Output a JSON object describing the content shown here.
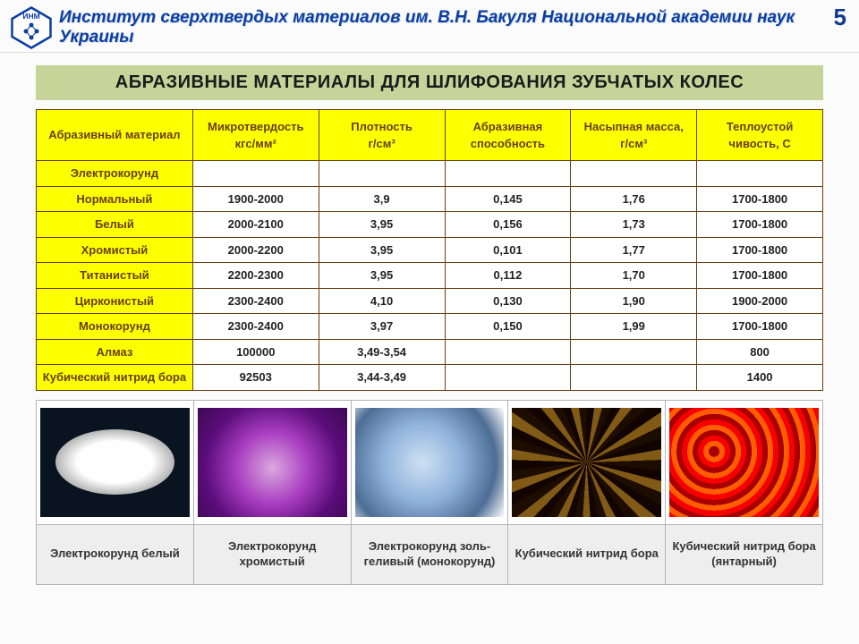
{
  "page_number": "5",
  "institute_title": "Институт сверхтвердых материалов им. В.Н. Бакуля Национальной академии наук Украины",
  "logo_text": "ИНМ",
  "section_title": "АБРАЗИВНЫЕ МАТЕРИАЛЫ ДЛЯ ШЛИФОВАНИЯ ЗУБЧАТЫХ КОЛЕС",
  "table": {
    "columns": [
      "Абразивный материал",
      "Микротвердость кгс/мм²",
      "Плотность г/см³",
      "Абразивная способность",
      "Насыпная масса, г/см³",
      "Теплоустой чивость, С"
    ],
    "col_widths_pct": [
      20,
      16,
      16,
      16,
      16,
      16
    ],
    "header_bg": "#fcff00",
    "header_fg": "#6a3e10",
    "border_color": "#6a3e10",
    "rows": [
      {
        "label": "Электрокорунд",
        "values": [
          "",
          "",
          "",
          "",
          ""
        ]
      },
      {
        "label": "Нормальный",
        "values": [
          "1900-2000",
          "3,9",
          "0,145",
          "1,76",
          "1700-1800"
        ]
      },
      {
        "label": "Белый",
        "values": [
          "2000-2100",
          "3,95",
          "0,156",
          "1,73",
          "1700-1800"
        ]
      },
      {
        "label": "Хромистый",
        "values": [
          "2000-2200",
          "3,95",
          "0,101",
          "1,77",
          "1700-1800"
        ]
      },
      {
        "label": "Титанистый",
        "values": [
          "2200-2300",
          "3,95",
          "0,112",
          "1,70",
          "1700-1800"
        ]
      },
      {
        "label": "Цирконистый",
        "values": [
          "2300-2400",
          "4,10",
          "0,130",
          "1,90",
          "1900-2000"
        ]
      },
      {
        "label": "Монокорунд",
        "values": [
          "2300-2400",
          "3,97",
          "0,150",
          "1,99",
          "1700-1800"
        ]
      },
      {
        "label": "Алмаз",
        "values": [
          "100000",
          "3,49-3,54",
          "",
          "",
          "800"
        ]
      },
      {
        "label": "Кубический нитрид бора",
        "values": [
          "92503",
          "3,44-3,49",
          "",
          "",
          "1400"
        ]
      }
    ]
  },
  "samples": {
    "items": [
      {
        "label": "Электрокорунд белый",
        "swatch_class": "sw-white"
      },
      {
        "label": "Электрокорунд хромистый",
        "swatch_class": "sw-purple"
      },
      {
        "label": "Электрокорунд золь-геливый (монокорунд)",
        "swatch_class": "sw-blue"
      },
      {
        "label": "Кубический нитрид бора",
        "swatch_class": "sw-cbn"
      },
      {
        "label": "Кубический нитрид бора (янтарный)",
        "swatch_class": "sw-amber"
      }
    ],
    "label_bg": "#eeeeee",
    "label_fg": "#333333"
  },
  "colors": {
    "section_bg": "#c6d49a",
    "title_blue": "#0b3ea0"
  }
}
